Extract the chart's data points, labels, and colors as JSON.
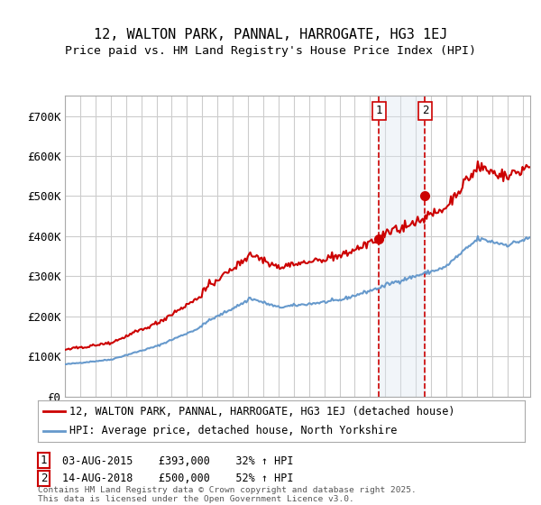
{
  "title": "12, WALTON PARK, PANNAL, HARROGATE, HG3 1EJ",
  "subtitle": "Price paid vs. HM Land Registry's House Price Index (HPI)",
  "ylim": [
    0,
    750000
  ],
  "yticks": [
    0,
    100000,
    200000,
    300000,
    400000,
    500000,
    600000,
    700000
  ],
  "ytick_labels": [
    "£0",
    "£100K",
    "£200K",
    "£300K",
    "£400K",
    "£500K",
    "£600K",
    "£700K"
  ],
  "sale1_date": 2015.58,
  "sale1_price": 393000,
  "sale1_label": "1",
  "sale1_text": "03-AUG-2015    £393,000    32% ↑ HPI",
  "sale2_date": 2018.61,
  "sale2_price": 500000,
  "sale2_label": "2",
  "sale2_text": "14-AUG-2018    £500,000    52% ↑ HPI",
  "legend_line1": "12, WALTON PARK, PANNAL, HARROGATE, HG3 1EJ (detached house)",
  "legend_line2": "HPI: Average price, detached house, North Yorkshire",
  "footnote": "Contains HM Land Registry data © Crown copyright and database right 2025.\nThis data is licensed under the Open Government Licence v3.0.",
  "line_color_red": "#cc0000",
  "line_color_blue": "#6699cc",
  "shade_color": "#dce6f1",
  "background_color": "#ffffff",
  "grid_color": "#cccccc"
}
